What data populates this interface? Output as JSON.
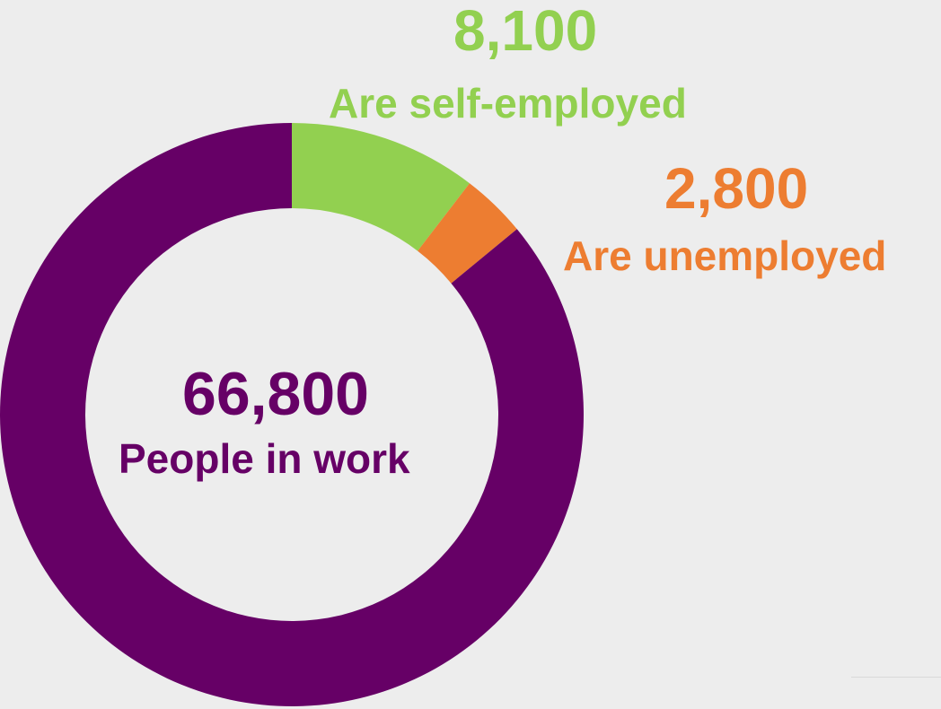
{
  "colors": {
    "background": "#ededed",
    "in_work": "#660066",
    "self_employed": "#92d050",
    "unemployed": "#ed7d31",
    "hole": "#ededed"
  },
  "chart_data": {
    "type": "pie",
    "variant": "donut",
    "title": "",
    "slices": [
      {
        "key": "self_employed",
        "value": 8100,
        "value_label": "8,100",
        "label": "Are self-employed",
        "color": "#92d050"
      },
      {
        "key": "unemployed",
        "value": 2800,
        "value_label": "2,800",
        "label": "Are unemployed",
        "color": "#ed7d31"
      },
      {
        "key": "in_work",
        "value": 66800,
        "value_label": "66,800",
        "label": "People in work",
        "color": "#660066"
      }
    ]
  }
}
